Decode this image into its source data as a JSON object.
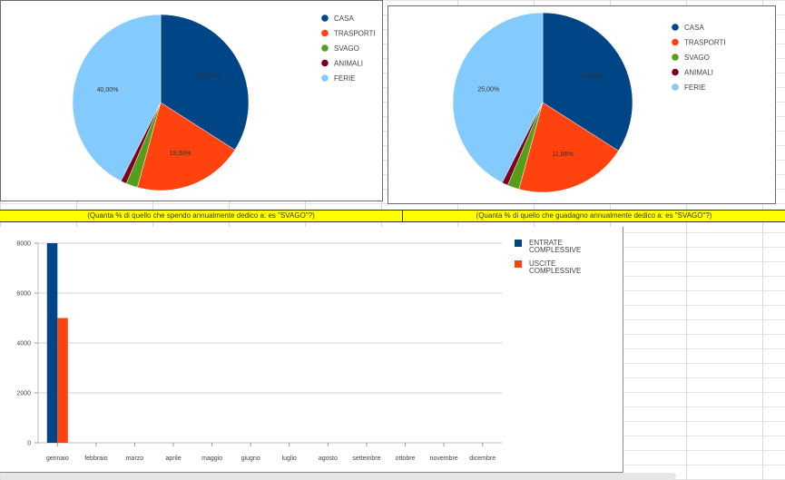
{
  "captions": {
    "left": "(Quanta % di quello che spendo annualmente dedico a: es \"SVAGO\"?)",
    "right": "(Quanta % di quello che guadagno annualmente dedico a: es \"SVAGO\"?)"
  },
  "colors": {
    "casa": "#004586",
    "trasporti": "#ff420e",
    "svago": "#579d1c",
    "animali": "#7e0021",
    "ferie": "#83caff"
  },
  "chart_data": [
    {
      "type": "pie",
      "title": "",
      "labels": [
        "CASA",
        "TRASPORTI",
        "SVAGO",
        "ANIMALI",
        "FERIE"
      ],
      "values": [
        32.0,
        19.0,
        2.0,
        1.0,
        40.0
      ],
      "data_labels": [
        "32,00%",
        "19,00%",
        "",
        "",
        "40,00%"
      ],
      "legend": "right"
    },
    {
      "type": "pie",
      "title": "",
      "labels": [
        "CASA",
        "TRASPORTI",
        "SVAGO",
        "ANIMALI",
        "FERIE"
      ],
      "values": [
        20.0,
        11.88,
        1.25,
        0.63,
        25.0
      ],
      "data_labels": [
        "20,00%",
        "11,88%",
        "",
        "",
        "25,00%"
      ],
      "legend": "right"
    },
    {
      "type": "bar",
      "title": "",
      "categories": [
        "gennaio",
        "febbraio",
        "marzo",
        "aprile",
        "maggio",
        "giugno",
        "luglio",
        "agosto",
        "settembre",
        "ottobre",
        "novembre",
        "dicembre"
      ],
      "series": [
        {
          "name": "ENTRATE COMPLESSIVE",
          "values": [
            8000,
            0,
            0,
            0,
            0,
            0,
            0,
            0,
            0,
            0,
            0,
            0
          ]
        },
        {
          "name": "USCITE COMPLESSIVE",
          "values": [
            5000,
            0,
            0,
            0,
            0,
            0,
            0,
            0,
            0,
            0,
            0,
            0
          ]
        }
      ],
      "legend_lines": [
        [
          "ENTRATE",
          "COMPLESSIVE"
        ],
        [
          "USCITE",
          "COMPLESSIVE"
        ]
      ],
      "series_colors": [
        "#004586",
        "#ff420e"
      ],
      "yticks": [
        "0",
        "2000",
        "4000",
        "6000",
        "8000"
      ],
      "ylim": [
        0,
        8000
      ],
      "grid": true,
      "legend": "top-right"
    }
  ]
}
